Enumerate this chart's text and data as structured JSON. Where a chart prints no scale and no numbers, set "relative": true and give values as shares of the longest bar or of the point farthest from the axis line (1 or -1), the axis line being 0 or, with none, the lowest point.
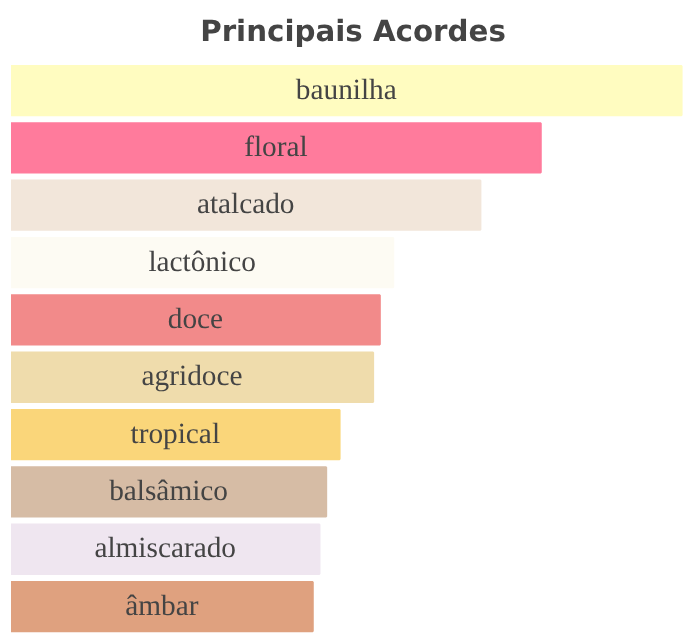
{
  "chart_data": {
    "type": "bar",
    "title": "Principais Acordes",
    "orientation": "horizontal",
    "relative": true,
    "grid": false,
    "categories": [
      "baunilha",
      "floral",
      "atalcado",
      "lactônico",
      "doce",
      "agridoce",
      "tropical",
      "balsâmico",
      "almiscarado",
      "âmbar"
    ],
    "values": [
      1,
      0.79,
      0.7,
      0.57,
      0.55,
      0.54,
      0.49,
      0.47,
      0.46,
      0.45
    ],
    "colors": [
      "#fffcc0",
      "#ff7b9c",
      "#f2e6da",
      "#fdfbf3",
      "#f28a8a",
      "#efdcac",
      "#fad67a",
      "#d6bca5",
      "#efe6f0",
      "#dfa17f"
    ]
  }
}
